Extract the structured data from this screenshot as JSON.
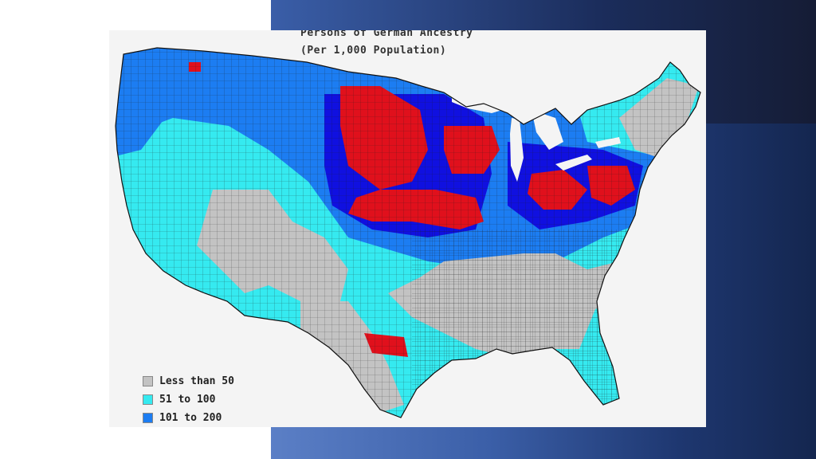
{
  "map": {
    "title": "Persons of German Ancestry",
    "subtitle": "(Per 1,000 Population)",
    "colors": {
      "low": "#c3c3c3",
      "mid": "#35eaf0",
      "high": "#1c7df2",
      "very_high": "#1010e0",
      "top": "#e0101c",
      "county_border": "#1a1a1a",
      "background": "#f4f4f4"
    },
    "legend": [
      {
        "label": "Less than 50",
        "color": "#c3c3c3"
      },
      {
        "label": "51 to 100",
        "color": "#35eaf0"
      },
      {
        "label": "101 to 200",
        "color": "#1c7df2"
      }
    ]
  }
}
